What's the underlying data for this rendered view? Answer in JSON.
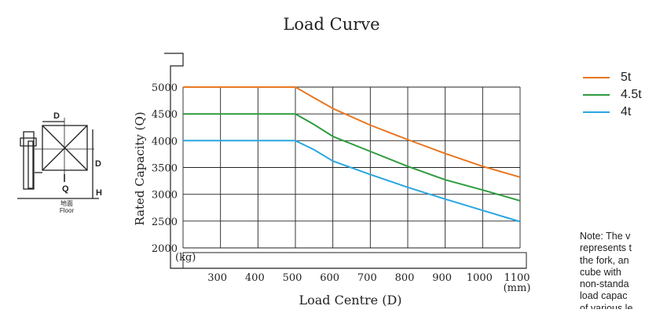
{
  "chart_data": {
    "type": "line",
    "title": "Load Curve",
    "xlabel": "Load Centre (D)",
    "ylabel": "Rated Capacity (Q)",
    "x_unit": "(mm)",
    "y_unit": "(kg)",
    "x_ticks": [
      "300",
      "400",
      "500",
      "600",
      "700",
      "800",
      "900",
      "1000",
      "1100"
    ],
    "y_ticks": [
      "2000",
      "2500",
      "3000",
      "3500",
      "4000",
      "4500",
      "5000"
    ],
    "xlim": [
      200,
      1100
    ],
    "ylim": [
      2000,
      5000
    ],
    "grid": true,
    "legend_position": "right",
    "series": [
      {
        "name": "5t",
        "color": "#E87722",
        "x": [
          200,
          500,
          550,
          600,
          700,
          800,
          900,
          1000,
          1100
        ],
        "y": [
          5000,
          5000,
          4800,
          4600,
          4290,
          4020,
          3760,
          3520,
          3320
        ]
      },
      {
        "name": "4.5t",
        "color": "#2E9B3E",
        "x": [
          200,
          500,
          550,
          600,
          700,
          800,
          900,
          1000,
          1100
        ],
        "y": [
          4500,
          4500,
          4300,
          4080,
          3800,
          3520,
          3270,
          3080,
          2880
        ]
      },
      {
        "name": "4t",
        "color": "#2AA6E0",
        "x": [
          200,
          500,
          550,
          600,
          700,
          800,
          900,
          1000,
          1100
        ],
        "y": [
          4000,
          4000,
          3830,
          3620,
          3370,
          3130,
          2910,
          2700,
          2490
        ]
      }
    ]
  },
  "diagram": {
    "dim_d_top": "D",
    "dim_d_side": "D",
    "dim_q": "Q",
    "dim_h": "H",
    "floor_cn": "地面",
    "floor_en": "Floor"
  },
  "note": {
    "lines": [
      "Note: The v",
      "represents t",
      "the fork, an",
      "cube  with",
      "non-standa",
      "load capac",
      "of various le"
    ]
  }
}
